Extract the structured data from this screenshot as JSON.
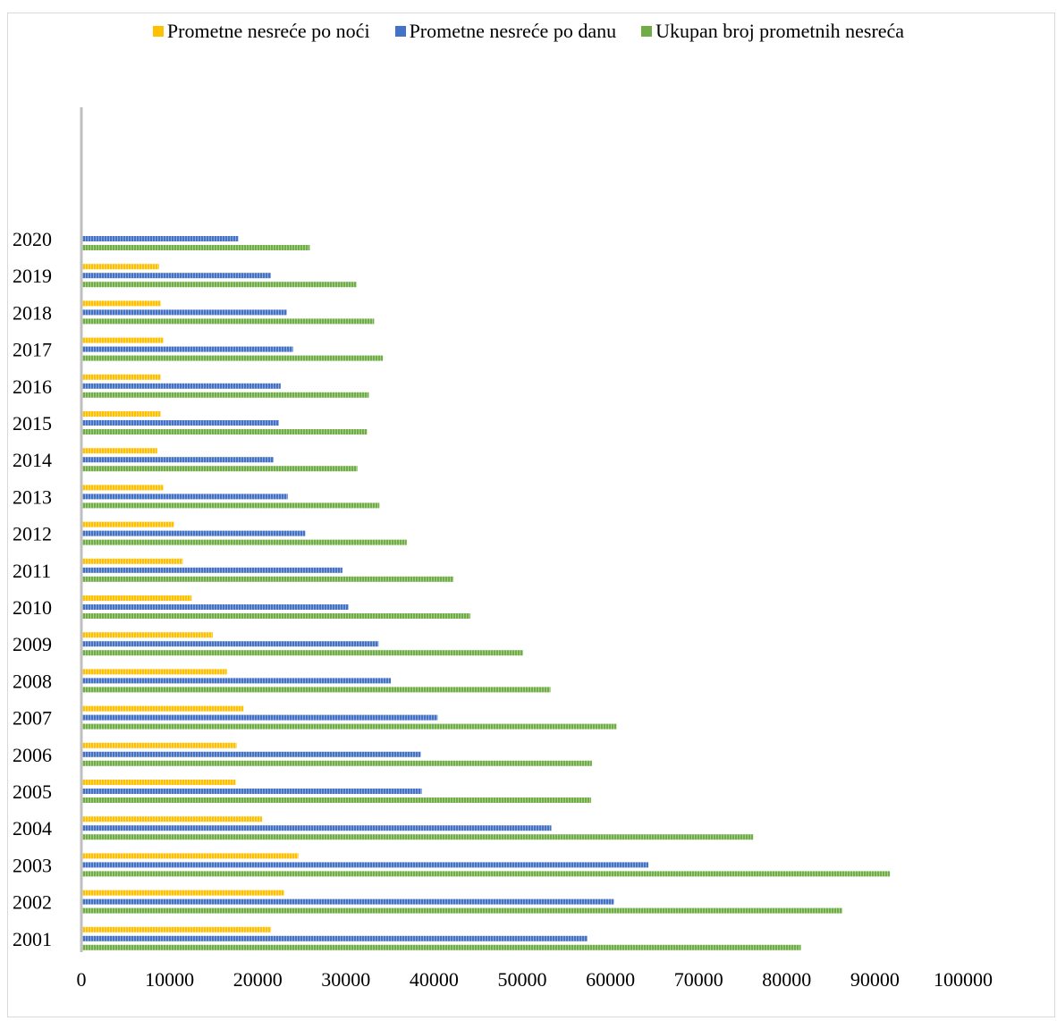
{
  "chart_data": {
    "type": "bar",
    "orientation": "horizontal",
    "title": "",
    "xlabel": "",
    "ylabel": "",
    "xlim": [
      0,
      100000
    ],
    "x_ticks": [
      "0",
      "10000",
      "20000",
      "30000",
      "40000",
      "50000",
      "60000",
      "70000",
      "80000",
      "90000",
      "100000"
    ],
    "grid": false,
    "legend_position": "top",
    "categories": [
      "2001",
      "2002",
      "2003",
      "2004",
      "2005",
      "2006",
      "2007",
      "2008",
      "2009",
      "2010",
      "2011",
      "2012",
      "2013",
      "2014",
      "2015",
      "2016",
      "2017",
      "2018",
      "2019",
      "2020"
    ],
    "series": [
      {
        "name": "Prometne nesreće po noći",
        "color": "#ffc000",
        "values": [
          21500,
          23000,
          24600,
          20500,
          17500,
          17600,
          18400,
          16500,
          14900,
          12500,
          11500,
          10500,
          9300,
          8600,
          9000,
          9000,
          9300,
          9000,
          8800,
          null
        ]
      },
      {
        "name": "Prometne nesreće po danu",
        "color": "#4472c4",
        "values": [
          57400,
          60400,
          64300,
          53300,
          38600,
          38500,
          40400,
          35100,
          33700,
          30300,
          29600,
          25400,
          23400,
          21800,
          22400,
          22600,
          24000,
          23300,
          21500,
          17800
        ]
      },
      {
        "name": "Ukupan broj prometnih nesreća",
        "color": "#70ad47",
        "values": [
          81600,
          86300,
          91700,
          76200,
          57800,
          57900,
          60700,
          53200,
          50100,
          44100,
          42200,
          36900,
          33800,
          31300,
          32400,
          32600,
          34200,
          33200,
          31200,
          25900
        ]
      }
    ]
  }
}
